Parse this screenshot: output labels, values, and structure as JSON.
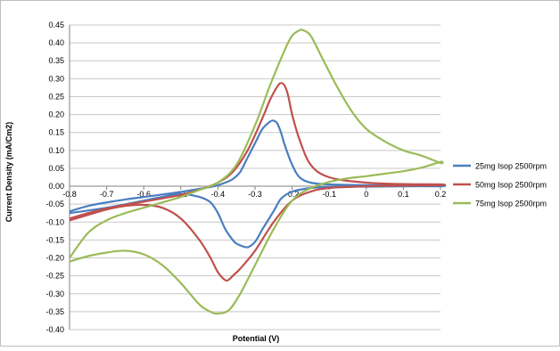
{
  "chart_data": {
    "type": "line",
    "title": "",
    "xlabel": "Potential (V)",
    "ylabel": "Current Density (mA/Cm2)",
    "xlim": [
      -0.8,
      0.2
    ],
    "ylim": [
      -0.4,
      0.45
    ],
    "x_ticks": [
      "-0.8",
      "-0.7",
      "-0.6",
      "-0.5",
      "-0.4",
      "-0.3",
      "-0.2",
      "-0.1",
      "0",
      "0.1",
      "0.2"
    ],
    "y_ticks": [
      "0.45",
      "0.40",
      "0.35",
      "0.30",
      "0.25",
      "0.20",
      "0.15",
      "0.10",
      "0.05",
      "0.00",
      "-0.05",
      "-0.10",
      "-0.15",
      "-0.20",
      "-0.25",
      "-0.30",
      "-0.35",
      "-0.40"
    ],
    "grid": "horizontal",
    "legend_position": "right",
    "series": [
      {
        "name": "25mg Isop 2500rpm",
        "color": "#4a7ebf",
        "x": [
          -0.8,
          -0.75,
          -0.7,
          -0.65,
          -0.6,
          -0.55,
          -0.5,
          -0.45,
          -0.42,
          -0.4,
          -0.38,
          -0.36,
          -0.34,
          -0.32,
          -0.3,
          -0.28,
          -0.26,
          -0.25,
          -0.24,
          -0.23,
          -0.22,
          -0.2,
          -0.18,
          -0.15,
          -0.1,
          0.0,
          0.1,
          0.2,
          0.2,
          0.1,
          0.0,
          -0.1,
          -0.15,
          -0.2,
          -0.23,
          -0.25,
          -0.28,
          -0.3,
          -0.32,
          -0.34,
          -0.35,
          -0.36,
          -0.38,
          -0.4,
          -0.42,
          -0.45,
          -0.5,
          -0.55,
          -0.6,
          -0.7,
          -0.8
        ],
        "y": [
          -0.07,
          -0.055,
          -0.045,
          -0.037,
          -0.03,
          -0.023,
          -0.016,
          -0.007,
          -0.002,
          0.003,
          0.01,
          0.02,
          0.04,
          0.08,
          0.12,
          0.16,
          0.18,
          0.183,
          0.175,
          0.15,
          0.115,
          0.06,
          0.025,
          0.01,
          0.005,
          0.003,
          0.002,
          0.002,
          0.0,
          0.0,
          -0.001,
          -0.002,
          -0.005,
          -0.015,
          -0.035,
          -0.07,
          -0.12,
          -0.155,
          -0.17,
          -0.165,
          -0.16,
          -0.15,
          -0.12,
          -0.075,
          -0.045,
          -0.03,
          -0.022,
          -0.03,
          -0.04,
          -0.06,
          -0.075
        ]
      },
      {
        "name": "50mg Isop 2500rpm",
        "color": "#c0504d",
        "x": [
          -0.8,
          -0.75,
          -0.7,
          -0.65,
          -0.6,
          -0.55,
          -0.5,
          -0.45,
          -0.4,
          -0.36,
          -0.32,
          -0.28,
          -0.26,
          -0.24,
          -0.23,
          -0.22,
          -0.21,
          -0.2,
          -0.18,
          -0.15,
          -0.1,
          0.0,
          0.1,
          0.2,
          0.2,
          0.1,
          0.0,
          -0.1,
          -0.15,
          -0.2,
          -0.25,
          -0.3,
          -0.34,
          -0.36,
          -0.37,
          -0.38,
          -0.4,
          -0.42,
          -0.45,
          -0.5,
          -0.55,
          -0.6,
          -0.65,
          -0.7,
          -0.75,
          -0.8
        ],
        "y": [
          -0.09,
          -0.075,
          -0.062,
          -0.052,
          -0.043,
          -0.034,
          -0.024,
          -0.01,
          0.01,
          0.04,
          0.1,
          0.19,
          0.24,
          0.278,
          0.288,
          0.28,
          0.25,
          0.2,
          0.13,
          0.06,
          0.025,
          0.01,
          0.006,
          0.005,
          0.003,
          0.002,
          0.0,
          -0.005,
          -0.015,
          -0.04,
          -0.1,
          -0.18,
          -0.23,
          -0.25,
          -0.26,
          -0.262,
          -0.24,
          -0.2,
          -0.15,
          -0.09,
          -0.06,
          -0.052,
          -0.055,
          -0.065,
          -0.08,
          -0.095
        ]
      },
      {
        "name": "75mg Isop 2500rpm",
        "color": "#9bbb59",
        "x": [
          -0.8,
          -0.75,
          -0.7,
          -0.65,
          -0.6,
          -0.55,
          -0.5,
          -0.45,
          -0.4,
          -0.35,
          -0.3,
          -0.26,
          -0.22,
          -0.2,
          -0.18,
          -0.17,
          -0.15,
          -0.12,
          -0.08,
          -0.04,
          0.0,
          0.05,
          0.1,
          0.15,
          0.2,
          0.2,
          0.15,
          0.1,
          0.05,
          0.0,
          -0.05,
          -0.1,
          -0.15,
          -0.2,
          -0.25,
          -0.3,
          -0.34,
          -0.37,
          -0.4,
          -0.42,
          -0.45,
          -0.5,
          -0.55,
          -0.6,
          -0.65,
          -0.7,
          -0.75,
          -0.8
        ],
        "y": [
          -0.2,
          -0.13,
          -0.095,
          -0.075,
          -0.06,
          -0.045,
          -0.03,
          -0.01,
          0.01,
          0.06,
          0.17,
          0.28,
          0.38,
          0.42,
          0.435,
          0.435,
          0.42,
          0.36,
          0.28,
          0.21,
          0.16,
          0.125,
          0.1,
          0.085,
          0.065,
          0.068,
          0.052,
          0.042,
          0.035,
          0.028,
          0.022,
          0.012,
          -0.005,
          -0.04,
          -0.12,
          -0.22,
          -0.3,
          -0.345,
          -0.355,
          -0.35,
          -0.33,
          -0.27,
          -0.22,
          -0.19,
          -0.18,
          -0.185,
          -0.195,
          -0.21
        ]
      }
    ]
  }
}
